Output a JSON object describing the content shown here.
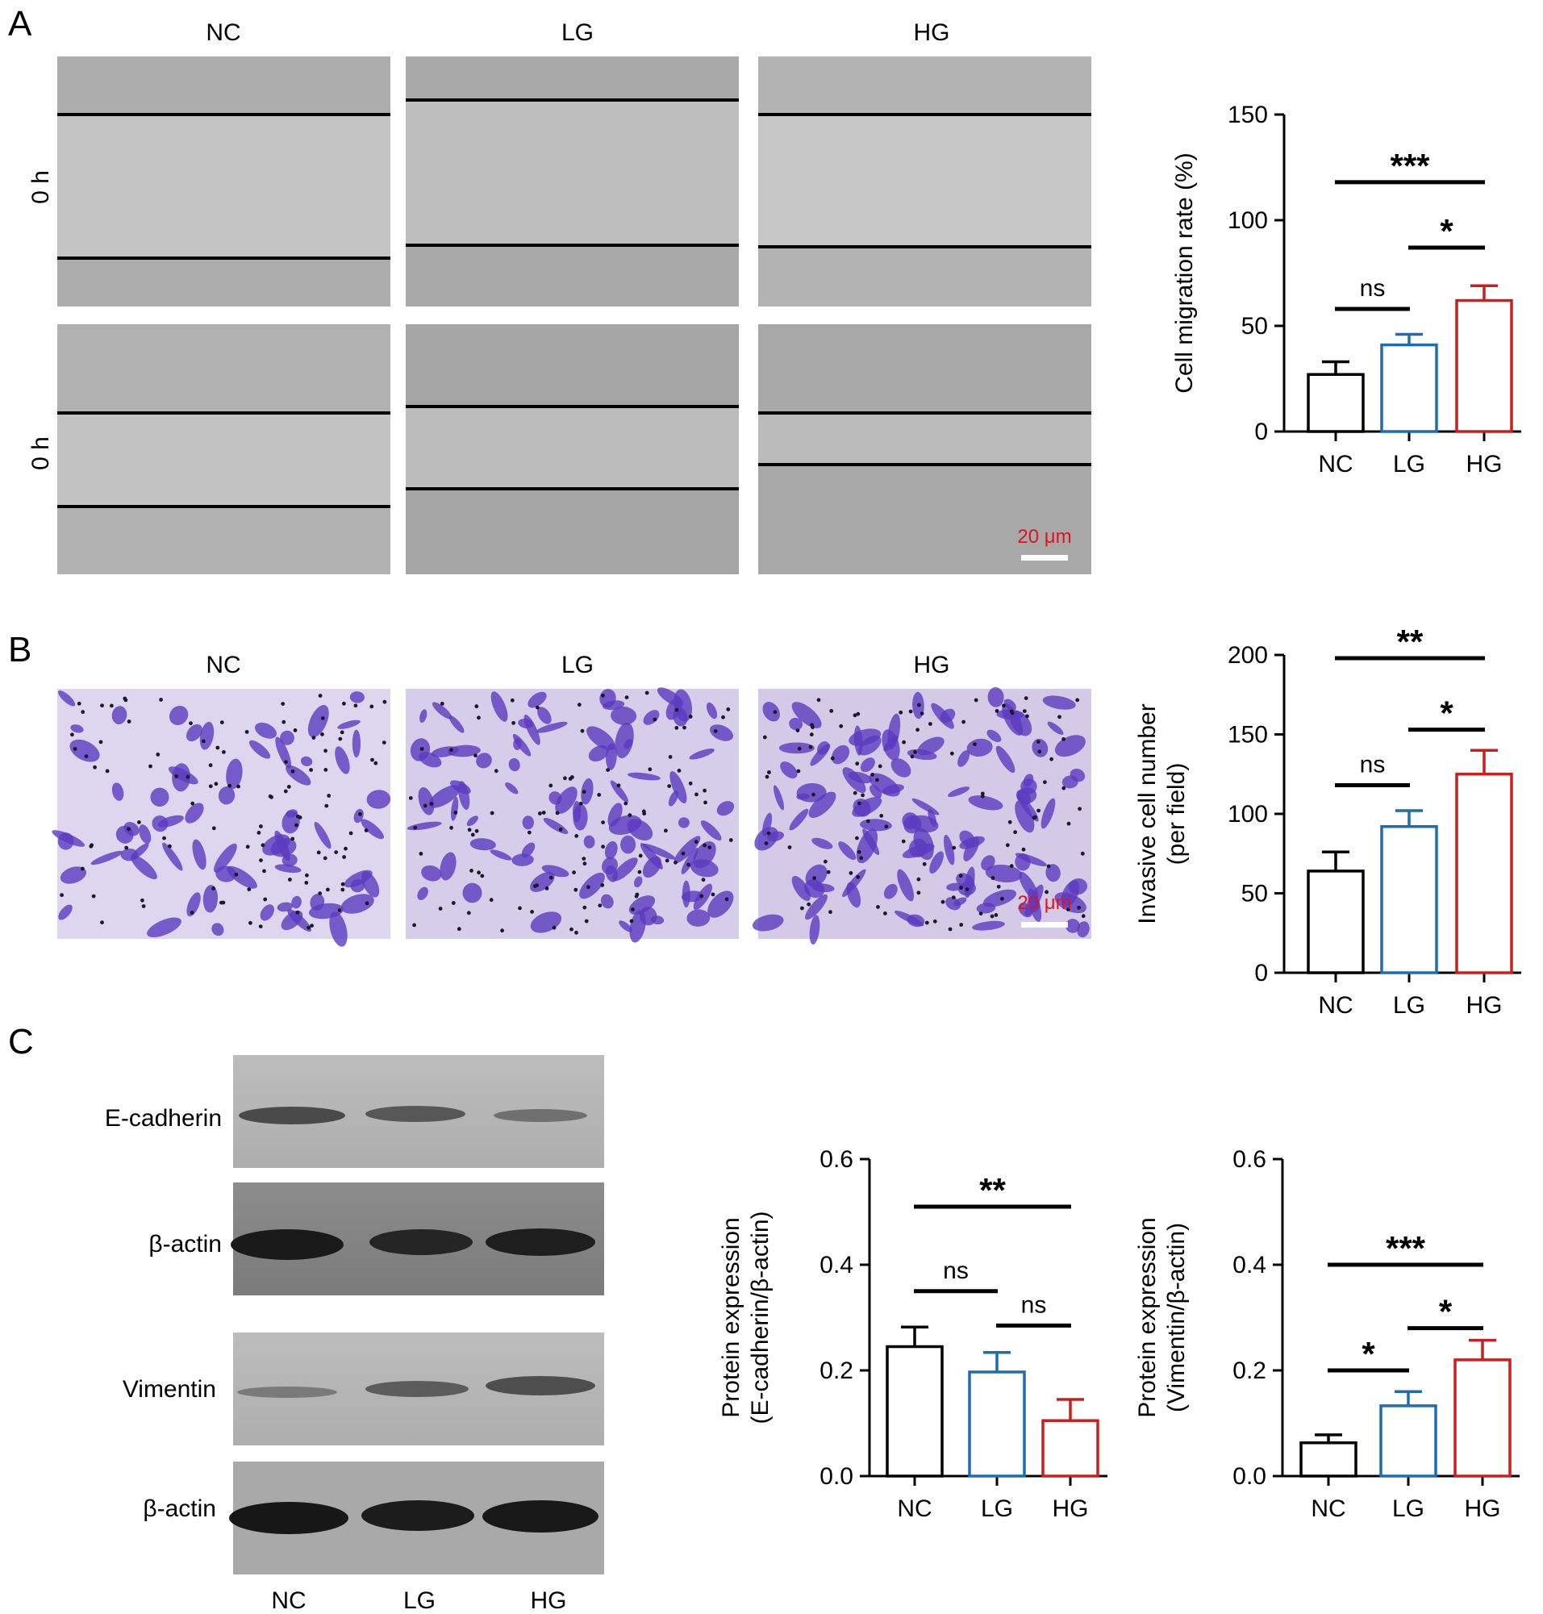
{
  "panels": {
    "a": "A",
    "b": "B",
    "c": "C"
  },
  "colors": {
    "NC": "#000000",
    "LG": "#1f6cb0",
    "HG": "#c8201e",
    "scalebar_text": "#e0141e",
    "crystal_violet": "#5b3bbf"
  },
  "panel_a": {
    "columns": [
      "NC",
      "LG",
      "HG"
    ],
    "row_labels": [
      "0 h",
      "0 h"
    ],
    "scale_bar": "20 μm"
  },
  "panel_b": {
    "columns": [
      "NC",
      "LG",
      "HG"
    ],
    "scale_bar": "20 μm"
  },
  "panel_c": {
    "blot_labels": [
      "E-cadherin",
      "β-actin",
      "Vimentin",
      "β-actin"
    ],
    "lanes": [
      "NC",
      "LG",
      "HG"
    ]
  },
  "chart_data": [
    {
      "id": "migration",
      "type": "bar",
      "categories": [
        "NC",
        "LG",
        "HG"
      ],
      "values": [
        27,
        41,
        62
      ],
      "errors": [
        6,
        5,
        7
      ],
      "ylabel": [
        "Cell migration rate (%)"
      ],
      "ylim": [
        0,
        150
      ],
      "yticks": [
        0,
        50,
        100,
        150
      ],
      "significance": [
        {
          "from": 0,
          "to": 1,
          "label": "ns",
          "y": 58
        },
        {
          "from": 1,
          "to": 2,
          "label": "*",
          "y": 87
        },
        {
          "from": 0,
          "to": 2,
          "label": "***",
          "y": 118
        }
      ]
    },
    {
      "id": "invasion",
      "type": "bar",
      "categories": [
        "NC",
        "LG",
        "HG"
      ],
      "values": [
        64,
        92,
        125
      ],
      "errors": [
        12,
        10,
        15
      ],
      "ylabel": [
        "Invasive cell number",
        "(per field)"
      ],
      "ylim": [
        0,
        200
      ],
      "yticks": [
        0,
        50,
        100,
        150,
        200
      ],
      "significance": [
        {
          "from": 0,
          "to": 1,
          "label": "ns",
          "y": 118
        },
        {
          "from": 1,
          "to": 2,
          "label": "*",
          "y": 153
        },
        {
          "from": 0,
          "to": 2,
          "label": "**",
          "y": 198
        }
      ]
    },
    {
      "id": "ecadherin",
      "type": "bar",
      "categories": [
        "NC",
        "LG",
        "HG"
      ],
      "values": [
        0.245,
        0.197,
        0.105
      ],
      "errors": [
        0.037,
        0.037,
        0.04
      ],
      "ylabel": [
        "Protein expression",
        "(E-cadherin/β-actin)"
      ],
      "ylim": [
        0,
        0.6
      ],
      "yticks": [
        "0.0",
        "0.2",
        "0.4",
        "0.6"
      ],
      "significance": [
        {
          "from": 0,
          "to": 1,
          "label": "ns",
          "y": 0.35
        },
        {
          "from": 1,
          "to": 2,
          "label": "ns",
          "y": 0.285
        },
        {
          "from": 0,
          "to": 2,
          "label": "**",
          "y": 0.51
        }
      ]
    },
    {
      "id": "vimentin",
      "type": "bar",
      "categories": [
        "NC",
        "LG",
        "HG"
      ],
      "values": [
        0.063,
        0.133,
        0.22
      ],
      "errors": [
        0.015,
        0.027,
        0.037
      ],
      "ylabel": [
        "Protein expression",
        "(Vimentin/β-actin)"
      ],
      "ylim": [
        0,
        0.6
      ],
      "yticks": [
        "0.0",
        "0.2",
        "0.4",
        "0.6"
      ],
      "significance": [
        {
          "from": 0,
          "to": 1,
          "label": "*",
          "y": 0.2
        },
        {
          "from": 1,
          "to": 2,
          "label": "*",
          "y": 0.28
        },
        {
          "from": 0,
          "to": 2,
          "label": "***",
          "y": 0.4
        }
      ]
    }
  ]
}
